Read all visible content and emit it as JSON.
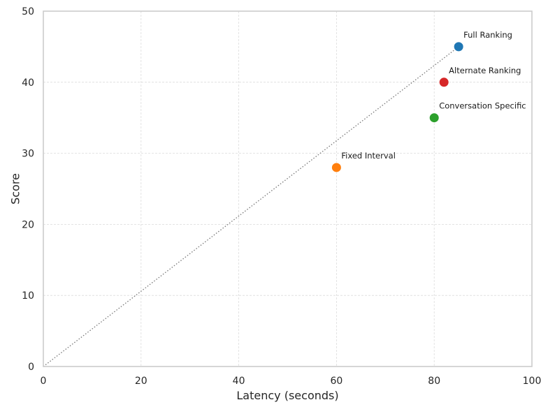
{
  "chart_data": {
    "type": "scatter",
    "title": "",
    "xlabel": "Latency (seconds)",
    "ylabel": "Score",
    "xlim": [
      0,
      100
    ],
    "ylim": [
      0,
      50
    ],
    "xticks": [
      0,
      20,
      40,
      60,
      80,
      100
    ],
    "yticks": [
      0,
      10,
      20,
      30,
      40,
      50
    ],
    "grid": true,
    "points": [
      {
        "label": "Full Ranking",
        "x": 85,
        "y": 45,
        "color": "#1f77b4"
      },
      {
        "label": "Alternate Ranking",
        "x": 82,
        "y": 40,
        "color": "#d62728"
      },
      {
        "label": "Conversation Specific",
        "x": 80,
        "y": 35,
        "color": "#2ca02c"
      },
      {
        "label": "Fixed Interval",
        "x": 60,
        "y": 28,
        "color": "#ff7f0e"
      }
    ],
    "trend_line": {
      "x": [
        0,
        85
      ],
      "y": [
        0,
        45
      ],
      "color": "#777777",
      "style": "dotted"
    }
  }
}
